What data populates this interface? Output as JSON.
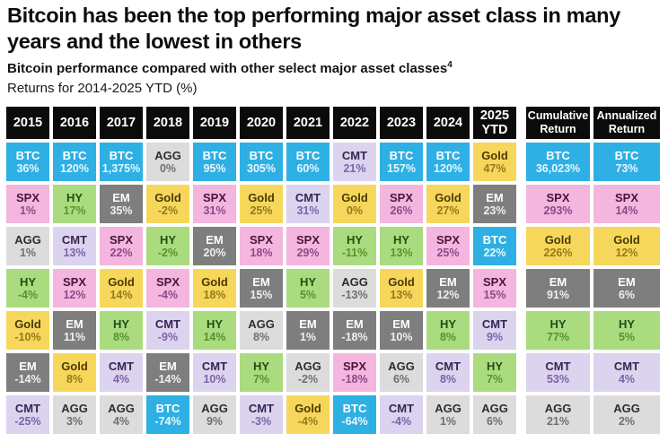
{
  "header": {
    "title": "Bitcoin has been the top performing major asset class in many years and the lowest in others",
    "subtitle": "Bitcoin performance compared with other select major asset classes",
    "subtitle_sup": "4",
    "returns_note": "Returns for 2014-2025 YTD (%)"
  },
  "asset_styles": {
    "BTC": {
      "bg": "#2EB0E4",
      "name_color": "#FFFFFF",
      "value_color": "#E8F6FD"
    },
    "SPX": {
      "bg": "#F4B5DF",
      "name_color": "#46173B",
      "value_color": "#8D4A87"
    },
    "HY": {
      "bg": "#AADC7F",
      "name_color": "#234E13",
      "value_color": "#58922F"
    },
    "Gold": {
      "bg": "#F6D75B",
      "name_color": "#4A3A06",
      "value_color": "#94791B"
    },
    "EM": {
      "bg": "#7E7E7E",
      "name_color": "#FFFFFF",
      "value_color": "#EFEFEF"
    },
    "AGG": {
      "bg": "#DCDCDC",
      "name_color": "#2E2E2E",
      "value_color": "#6F6F6F"
    },
    "CMT": {
      "bg": "#DCD3EE",
      "name_color": "#362553",
      "value_color": "#7B64A8"
    }
  },
  "chart_data": {
    "type": "table",
    "title": "Bitcoin has been the top performing major asset class in many years and the lowest in others",
    "subtitle": "Bitcoin performance compared with other select major asset classes4",
    "note": "Returns for 2014-2025 YTD (%)",
    "assets": [
      "BTC",
      "SPX",
      "AGG",
      "HY",
      "Gold",
      "EM",
      "CMT"
    ],
    "header_bg": "#0B0B0B",
    "columns": [
      {
        "header": "2015",
        "cells": [
          {
            "asset": "BTC",
            "value": "36%"
          },
          {
            "asset": "SPX",
            "value": "1%"
          },
          {
            "asset": "AGG",
            "value": "1%"
          },
          {
            "asset": "HY",
            "value": "-4%"
          },
          {
            "asset": "Gold",
            "value": "-10%"
          },
          {
            "asset": "EM",
            "value": "-14%"
          },
          {
            "asset": "CMT",
            "value": "-25%"
          }
        ]
      },
      {
        "header": "2016",
        "cells": [
          {
            "asset": "BTC",
            "value": "120%"
          },
          {
            "asset": "HY",
            "value": "17%"
          },
          {
            "asset": "CMT",
            "value": "13%"
          },
          {
            "asset": "SPX",
            "value": "12%"
          },
          {
            "asset": "EM",
            "value": "11%"
          },
          {
            "asset": "Gold",
            "value": "8%"
          },
          {
            "asset": "AGG",
            "value": "3%"
          }
        ]
      },
      {
        "header": "2017",
        "cells": [
          {
            "asset": "BTC",
            "value": "1,375%"
          },
          {
            "asset": "EM",
            "value": "35%"
          },
          {
            "asset": "SPX",
            "value": "22%"
          },
          {
            "asset": "Gold",
            "value": "14%"
          },
          {
            "asset": "HY",
            "value": "8%"
          },
          {
            "asset": "CMT",
            "value": "4%"
          },
          {
            "asset": "AGG",
            "value": "4%"
          }
        ]
      },
      {
        "header": "2018",
        "cells": [
          {
            "asset": "AGG",
            "value": "0%"
          },
          {
            "asset": "Gold",
            "value": "-2%"
          },
          {
            "asset": "HY",
            "value": "-2%"
          },
          {
            "asset": "SPX",
            "value": "-4%"
          },
          {
            "asset": "CMT",
            "value": "-9%"
          },
          {
            "asset": "EM",
            "value": "-14%"
          },
          {
            "asset": "BTC",
            "value": "-74%"
          }
        ]
      },
      {
        "header": "2019",
        "cells": [
          {
            "asset": "BTC",
            "value": "95%"
          },
          {
            "asset": "SPX",
            "value": "31%"
          },
          {
            "asset": "EM",
            "value": "20%"
          },
          {
            "asset": "Gold",
            "value": "18%"
          },
          {
            "asset": "HY",
            "value": "14%"
          },
          {
            "asset": "CMT",
            "value": "10%"
          },
          {
            "asset": "AGG",
            "value": "9%"
          }
        ]
      },
      {
        "header": "2020",
        "cells": [
          {
            "asset": "BTC",
            "value": "305%"
          },
          {
            "asset": "Gold",
            "value": "25%"
          },
          {
            "asset": "SPX",
            "value": "18%"
          },
          {
            "asset": "EM",
            "value": "15%"
          },
          {
            "asset": "AGG",
            "value": "8%"
          },
          {
            "asset": "HY",
            "value": "7%"
          },
          {
            "asset": "CMT",
            "value": "-3%"
          }
        ]
      },
      {
        "header": "2021",
        "cells": [
          {
            "asset": "BTC",
            "value": "60%"
          },
          {
            "asset": "CMT",
            "value": "31%"
          },
          {
            "asset": "SPX",
            "value": "29%"
          },
          {
            "asset": "HY",
            "value": "5%"
          },
          {
            "asset": "EM",
            "value": "1%"
          },
          {
            "asset": "AGG",
            "value": "-2%"
          },
          {
            "asset": "Gold",
            "value": "-4%"
          }
        ]
      },
      {
        "header": "2022",
        "cells": [
          {
            "asset": "CMT",
            "value": "21%"
          },
          {
            "asset": "Gold",
            "value": "0%"
          },
          {
            "asset": "HY",
            "value": "-11%"
          },
          {
            "asset": "AGG",
            "value": "-13%"
          },
          {
            "asset": "EM",
            "value": "-18%"
          },
          {
            "asset": "SPX",
            "value": "-18%"
          },
          {
            "asset": "BTC",
            "value": "-64%"
          }
        ]
      },
      {
        "header": "2023",
        "cells": [
          {
            "asset": "BTC",
            "value": "157%"
          },
          {
            "asset": "SPX",
            "value": "26%"
          },
          {
            "asset": "HY",
            "value": "13%"
          },
          {
            "asset": "Gold",
            "value": "13%"
          },
          {
            "asset": "EM",
            "value": "10%"
          },
          {
            "asset": "AGG",
            "value": "6%"
          },
          {
            "asset": "CMT",
            "value": "-4%"
          }
        ]
      },
      {
        "header": "2024",
        "cells": [
          {
            "asset": "BTC",
            "value": "120%"
          },
          {
            "asset": "Gold",
            "value": "27%"
          },
          {
            "asset": "SPX",
            "value": "25%"
          },
          {
            "asset": "EM",
            "value": "12%"
          },
          {
            "asset": "HY",
            "value": "8%"
          },
          {
            "asset": "CMT",
            "value": "8%"
          },
          {
            "asset": "AGG",
            "value": "1%"
          }
        ]
      },
      {
        "header": "2025 YTD",
        "cells": [
          {
            "asset": "Gold",
            "value": "47%"
          },
          {
            "asset": "EM",
            "value": "23%"
          },
          {
            "asset": "BTC",
            "value": "22%"
          },
          {
            "asset": "SPX",
            "value": "15%"
          },
          {
            "asset": "CMT",
            "value": "9%"
          },
          {
            "asset": "HY",
            "value": "7%"
          },
          {
            "asset": "AGG",
            "value": "6%"
          }
        ]
      },
      {
        "header": "Cumulative Return",
        "summary": true,
        "cells": [
          {
            "asset": "BTC",
            "value": "36,023%"
          },
          {
            "asset": "SPX",
            "value": "293%"
          },
          {
            "asset": "Gold",
            "value": "226%"
          },
          {
            "asset": "EM",
            "value": "91%"
          },
          {
            "asset": "HY",
            "value": "77%"
          },
          {
            "asset": "CMT",
            "value": "53%"
          },
          {
            "asset": "AGG",
            "value": "21%"
          }
        ]
      },
      {
        "header": "Annualized Return",
        "summary": true,
        "cells": [
          {
            "asset": "BTC",
            "value": "73%"
          },
          {
            "asset": "SPX",
            "value": "14%"
          },
          {
            "asset": "Gold",
            "value": "12%"
          },
          {
            "asset": "EM",
            "value": "6%"
          },
          {
            "asset": "HY",
            "value": "5%"
          },
          {
            "asset": "CMT",
            "value": "4%"
          },
          {
            "asset": "AGG",
            "value": "2%"
          }
        ]
      }
    ]
  }
}
